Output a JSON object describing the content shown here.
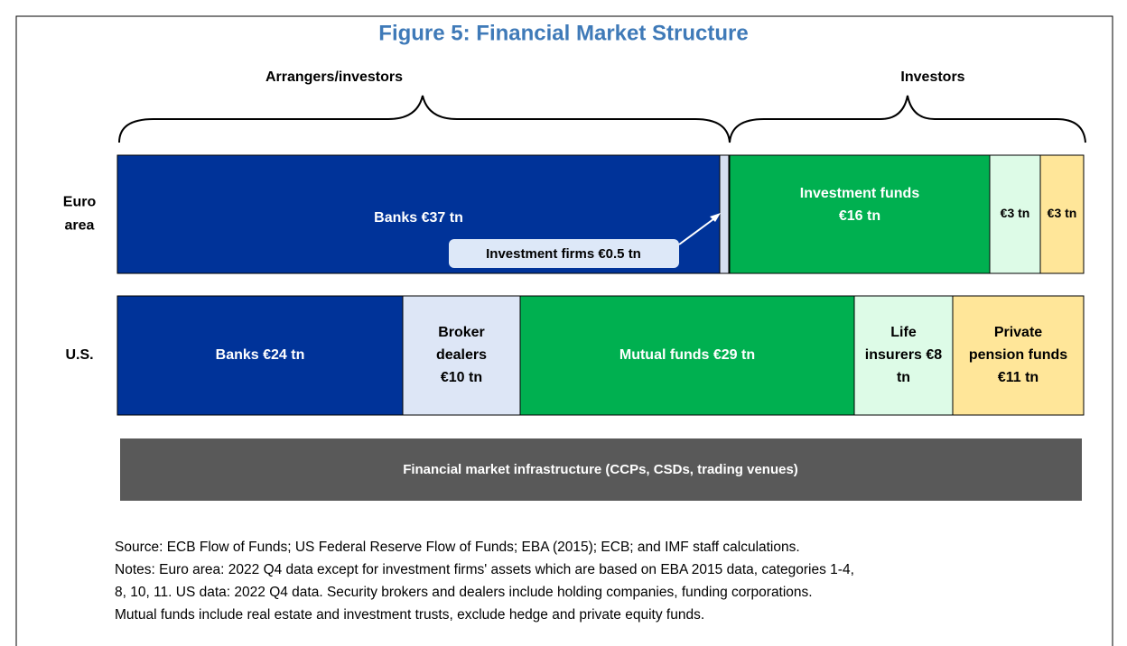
{
  "title": "Figure 5: Financial Market Structure",
  "groups": [
    {
      "label": "Arrangers/investors"
    },
    {
      "label": "Investors"
    }
  ],
  "rows": [
    {
      "label": [
        "Euro",
        "area"
      ],
      "segments": [
        {
          "lines": [
            "Banks €37 tn"
          ]
        },
        {
          "lines": []
        },
        {
          "lines": [
            "Investment funds",
            "€16 tn"
          ]
        },
        {
          "lines": [
            "€3 tn"
          ]
        },
        {
          "lines": [
            "€3 tn"
          ]
        }
      ]
    },
    {
      "label": [
        "U.S."
      ],
      "segments": [
        {
          "lines": [
            "Banks €24 tn"
          ]
        },
        {
          "lines": [
            "Broker",
            "dealers",
            "€10  tn"
          ]
        },
        {
          "lines": [
            "Mutual  funds €29 tn"
          ]
        },
        {
          "lines": [
            "Life",
            "insurers €8",
            "tn"
          ]
        },
        {
          "lines": [
            "Private",
            "pension funds",
            "€11 tn"
          ]
        }
      ]
    }
  ],
  "callout": "Investment firms €0.5 tn",
  "infrastructure": "Financial market infrastructure (CCPs, CSDs, trading venues)",
  "source": "Source: ECB Flow of Funds; US Federal Reserve Flow of Funds; EBA (2015); ECB; and IMF staff calculations.",
  "notes": [
    "Notes: Euro area: 2022 Q4 data except for investment firms' assets which are based on EBA 2015 data, categories 1-4,",
    "8, 10, 11. US data: 2022 Q4 data. Security brokers and dealers include holding companies, funding corporations.",
    "Mutual funds include real estate and investment trusts, exclude hedge and private equity funds."
  ]
}
